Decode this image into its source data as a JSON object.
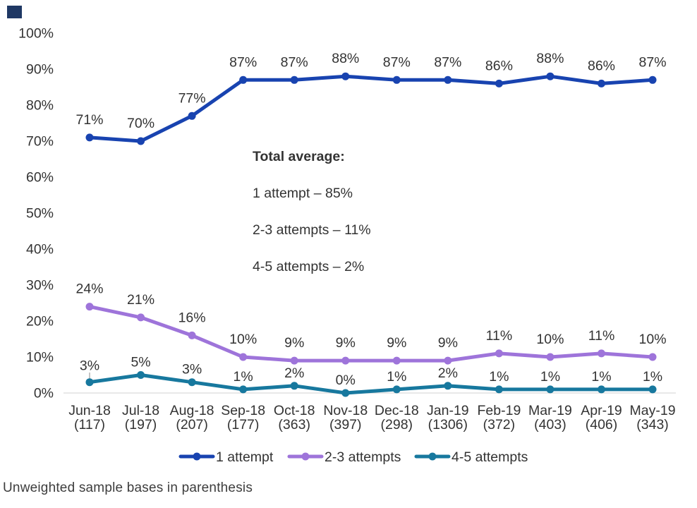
{
  "page": {
    "background": "#ffffff"
  },
  "corner_mark": {
    "color": "#1f3864"
  },
  "chart_data": {
    "type": "line",
    "categories": [
      "Jun-18",
      "Jul-18",
      "Aug-18",
      "Sep-18",
      "Oct-18",
      "Nov-18",
      "Dec-18",
      "Jan-19",
      "Feb-19",
      "Mar-19",
      "Apr-19",
      "May-19"
    ],
    "sample_bases": [
      "(117)",
      "(197)",
      "(207)",
      "(177)",
      "(363)",
      "(397)",
      "(298)",
      "(1306)",
      "(372)",
      "(403)",
      "(406)",
      "(343)"
    ],
    "series": [
      {
        "name": "1 attempt",
        "color": "#1843b0",
        "values": [
          71,
          70,
          77,
          87,
          87,
          88,
          87,
          87,
          86,
          88,
          86,
          87
        ]
      },
      {
        "name": "2-3 attempts",
        "color": "#9e74da",
        "values": [
          24,
          21,
          16,
          10,
          9,
          9,
          9,
          9,
          11,
          10,
          11,
          10
        ]
      },
      {
        "name": "4-5 attempts",
        "color": "#17789e",
        "values": [
          3,
          5,
          3,
          1,
          2,
          0,
          1,
          2,
          1,
          1,
          1,
          1
        ]
      }
    ],
    "ylim": [
      0,
      100
    ],
    "y_tick_labels": [
      "0%",
      "10%",
      "20%",
      "30%",
      "40%",
      "50%",
      "60%",
      "70%",
      "80%",
      "90%",
      "100%"
    ],
    "data_label_suffix": "%",
    "grid": false,
    "legend_position": "bottom",
    "annotation": {
      "title": "Total average:",
      "lines": [
        "1 attempt – 85%",
        "2-3 attempts – 11%",
        "4-5 attempts – 2%"
      ]
    }
  },
  "axis": {
    "line_color": "#d9d9d9",
    "text_color": "#333333"
  },
  "footer": {
    "note": "Unweighted sample bases in parenthesis"
  }
}
